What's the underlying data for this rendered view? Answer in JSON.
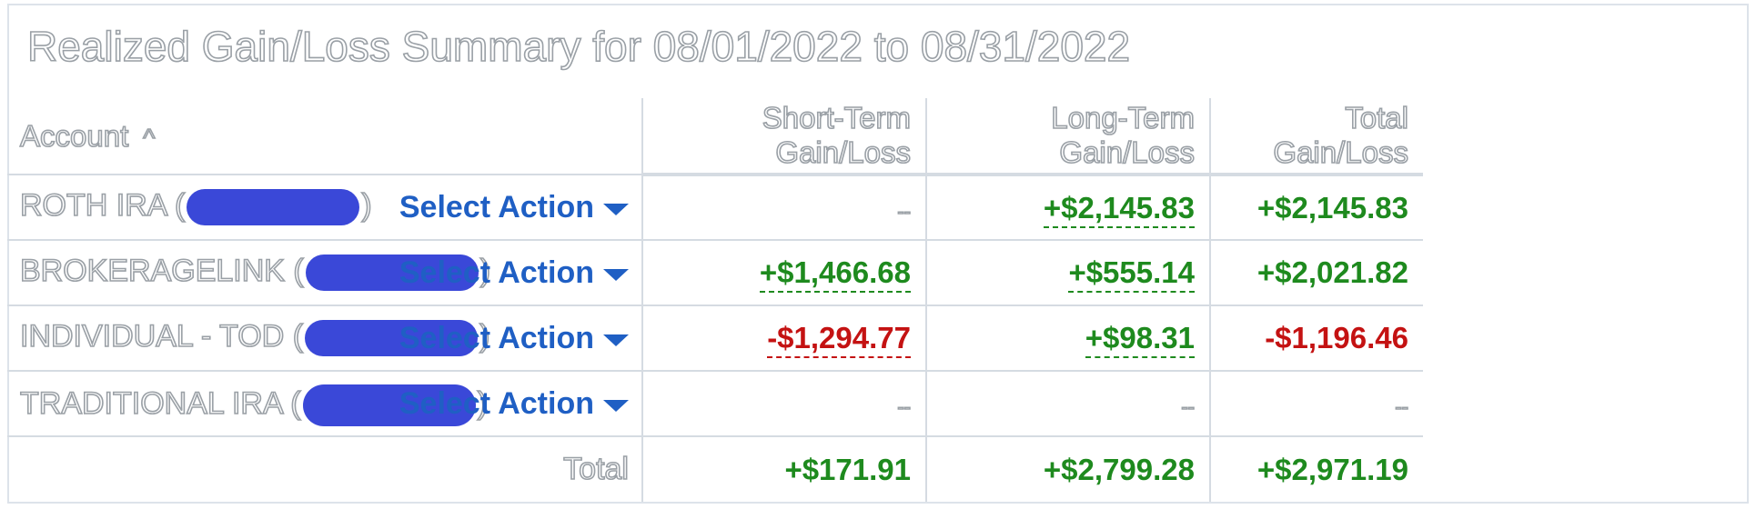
{
  "title": "Realized Gain/Loss Summary for 08/01/2022 to 08/31/2022",
  "headers": {
    "account": "Account",
    "sort_icon": "chevron-up-icon",
    "short_term": "Short-Term Gain/Loss",
    "long_term": "Long-Term Gain/Loss",
    "total": "Total Gain/Loss"
  },
  "rows": [
    {
      "name_prefix": "ROTH IRA (",
      "name_suffix": ")",
      "action": "Select Action",
      "short_term": "--",
      "long_term": "+$2,145.83",
      "total": "+$2,145.83"
    },
    {
      "name_prefix": "BROKERAGELINK (",
      "name_suffix": ")",
      "action": "Select Action",
      "short_term": "+$1,466.68",
      "long_term": "+$555.14",
      "total": "+$2,021.82"
    },
    {
      "name_prefix": "INDIVIDUAL - TOD (",
      "name_suffix": ")",
      "action": "Select Action",
      "short_term": "-$1,294.77",
      "long_term": "+$98.31",
      "total": "-$1,196.46"
    },
    {
      "name_prefix": "TRADITIONAL IRA (",
      "name_suffix": ")",
      "action": "Select Action",
      "short_term": "--",
      "long_term": "--",
      "total": "--"
    }
  ],
  "totals": {
    "label": "Total",
    "short_term": "+$171.91",
    "long_term": "+$2,799.28",
    "total": "+$2,971.19"
  },
  "colors": {
    "positive": "#1e8a1e",
    "negative": "#c41212",
    "link": "#1f5fc4",
    "redaction": "#3a48d8",
    "border": "#d5dbe2"
  }
}
